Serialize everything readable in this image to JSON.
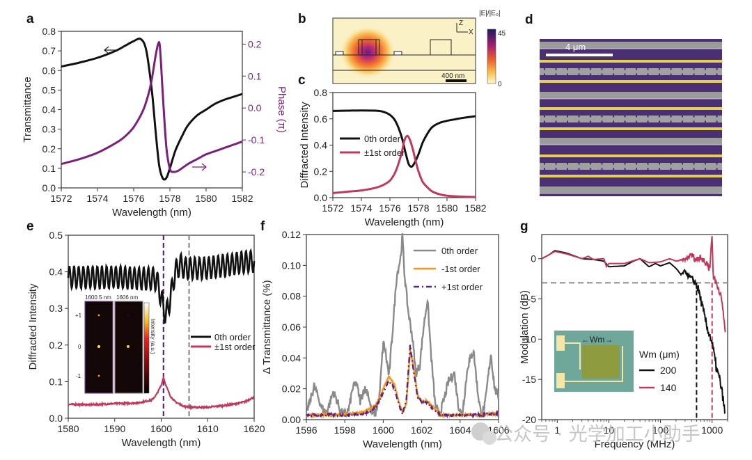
{
  "panels": {
    "a": {
      "letter": "a"
    },
    "b": {
      "letter": "b",
      "axis_z": "Z",
      "axis_x": "X",
      "scalebar_label": "400 nm",
      "colorbar_title": "|E|/|E₀|",
      "colorbar_max": "45",
      "colorbar_min": "0"
    },
    "c": {
      "letter": "c"
    },
    "d": {
      "letter": "d",
      "scalebar_label": "4 μm"
    },
    "e": {
      "letter": "e",
      "inset": {
        "label_left": "1600.5 nm",
        "label_right": "1606 nm",
        "order_plus": "+1",
        "order_zero": "0",
        "order_minus": "-1",
        "colorbar_label": "Intensity (a.u.)"
      }
    },
    "f": {
      "letter": "f"
    },
    "g": {
      "letter": "g",
      "inset_label": "←Wm→",
      "legend_title": "Wm (μm)"
    }
  },
  "watermark": "公众号 · 光学加工小助手",
  "colors": {
    "black": "#111111",
    "purple": "#7b1f7a",
    "crimson": "#c0395a",
    "gray": "#8a8a8a",
    "orange": "#f7941d",
    "dark_purple": "#5b2483"
  },
  "chart_data": [
    {
      "id": "a",
      "type": "line",
      "xlabel": "Wavelength (nm)",
      "ylabel": "Transmittance",
      "y2label": "Phase (π)",
      "xlim": [
        1572,
        1582
      ],
      "ylim": [
        0,
        0.8
      ],
      "y2lim": [
        -0.25,
        0.24
      ],
      "xticks": [
        "1572",
        "1574",
        "1576",
        "1578",
        "1580",
        "1582"
      ],
      "yticks": [
        "0.0",
        "0.1",
        "0.2",
        "0.3",
        "0.4",
        "0.5",
        "0.6",
        "0.7",
        "0.8"
      ],
      "y2ticks": [
        "-0.2",
        "-0.1",
        "0.0",
        "0.1",
        "0.2"
      ],
      "series": [
        {
          "name": "Transmittance",
          "axis": "left",
          "color": "#111111",
          "x": [
            1572,
            1573,
            1574,
            1575,
            1575.5,
            1576,
            1576.4,
            1576.7,
            1577,
            1577.2,
            1577.4,
            1577.6,
            1577.8,
            1578,
            1578.3,
            1578.7,
            1579,
            1579.5,
            1580,
            1580.5,
            1581,
            1581.5,
            1582
          ],
          "y": [
            0.62,
            0.64,
            0.665,
            0.7,
            0.725,
            0.75,
            0.76,
            0.7,
            0.5,
            0.3,
            0.12,
            0.05,
            0.05,
            0.1,
            0.19,
            0.27,
            0.32,
            0.37,
            0.4,
            0.43,
            0.45,
            0.465,
            0.48
          ]
        },
        {
          "name": "Phase",
          "axis": "right",
          "color": "#7b1f7a",
          "x": [
            1572,
            1573,
            1574,
            1575,
            1575.5,
            1576,
            1576.5,
            1576.8,
            1577,
            1577.2,
            1577.35,
            1577.45,
            1577.6,
            1577.8,
            1578,
            1578.2,
            1578.5,
            1579,
            1579.5,
            1580,
            1580.5,
            1581,
            1581.5,
            1582
          ],
          "y": [
            -0.175,
            -0.16,
            -0.14,
            -0.11,
            -0.09,
            -0.06,
            -0.01,
            0.04,
            0.09,
            0.16,
            0.2,
            0.19,
            0.05,
            -0.12,
            -0.19,
            -0.2,
            -0.195,
            -0.175,
            -0.16,
            -0.145,
            -0.135,
            -0.125,
            -0.115,
            -0.105
          ]
        }
      ],
      "annotations": [
        "arrow-left near black curve",
        "arrow-right near purple curve"
      ]
    },
    {
      "id": "c",
      "type": "line",
      "xlabel": "Wavelength (nm)",
      "ylabel": "Diffracted Intensity",
      "xlim": [
        1572,
        1582
      ],
      "ylim": [
        0,
        0.8
      ],
      "xticks": [
        "1572",
        "1574",
        "1576",
        "1578",
        "1580",
        "1582"
      ],
      "yticks": [
        "0.0",
        "0.2",
        "0.4",
        "0.6",
        "0.8"
      ],
      "legend": [
        "0th order",
        "±1st order"
      ],
      "legend_position": "center-left",
      "series": [
        {
          "name": "0th order",
          "color": "#111111",
          "x": [
            1572,
            1573,
            1574,
            1575,
            1575.5,
            1576,
            1576.4,
            1576.8,
            1577.1,
            1577.3,
            1577.5,
            1577.7,
            1578,
            1578.3,
            1578.7,
            1579,
            1579.5,
            1580,
            1580.5,
            1581,
            1582
          ],
          "y": [
            0.66,
            0.662,
            0.664,
            0.662,
            0.655,
            0.63,
            0.58,
            0.47,
            0.34,
            0.26,
            0.235,
            0.26,
            0.33,
            0.42,
            0.5,
            0.54,
            0.57,
            0.585,
            0.595,
            0.605,
            0.62
          ]
        },
        {
          "name": "±1st order",
          "color": "#c0395a",
          "x": [
            1572,
            1573,
            1574,
            1575,
            1575.5,
            1576,
            1576.4,
            1576.8,
            1577,
            1577.2,
            1577.4,
            1577.6,
            1577.8,
            1578,
            1578.3,
            1578.7,
            1579,
            1579.5,
            1580,
            1581,
            1582
          ],
          "y": [
            0.035,
            0.045,
            0.055,
            0.075,
            0.095,
            0.13,
            0.2,
            0.33,
            0.43,
            0.47,
            0.44,
            0.37,
            0.28,
            0.2,
            0.12,
            0.07,
            0.045,
            0.025,
            0.015,
            0.008,
            0.005
          ]
        }
      ]
    },
    {
      "id": "e",
      "type": "line",
      "xlabel": "Wavelength (nm)",
      "ylabel": "Diffracted Intensity",
      "xlim": [
        1580,
        1620
      ],
      "ylim": [
        0,
        0.5
      ],
      "xticks": [
        "1580",
        "1590",
        "1600",
        "1610",
        "1620"
      ],
      "yticks": [
        "0.0",
        "0.1",
        "0.2",
        "0.3",
        "0.4",
        "0.5"
      ],
      "legend": [
        "0th order",
        "±1st order"
      ],
      "legend_position": "center-right",
      "vlines": [
        {
          "x": 1600.5,
          "color": "#5b2483",
          "style": "dashed"
        },
        {
          "x": 1606,
          "color": "#8a8a8a",
          "style": "dashed"
        }
      ],
      "series": [
        {
          "name": "0th order",
          "color": "#111111",
          "baseline": 0.385,
          "ripple_amplitude": 0.03,
          "ripple_period_nm": 1.0,
          "dip": {
            "center": 1601,
            "depth": 0.1,
            "width": 1.5
          },
          "x": [
            1580,
            1590,
            1599,
            1600,
            1600.5,
            1601,
            1602,
            1603,
            1604,
            1605,
            1610,
            1615,
            1620
          ],
          "y": [
            0.385,
            0.385,
            0.38,
            0.33,
            0.3,
            0.28,
            0.33,
            0.4,
            0.42,
            0.41,
            0.41,
            0.42,
            0.43
          ]
        },
        {
          "name": "±1st order",
          "color": "#c0395a",
          "x": [
            1580,
            1585,
            1590,
            1595,
            1598,
            1599,
            1600,
            1600.5,
            1601,
            1602,
            1603,
            1605,
            1607,
            1610,
            1615,
            1618,
            1620
          ],
          "y": [
            0.038,
            0.037,
            0.04,
            0.042,
            0.05,
            0.065,
            0.09,
            0.112,
            0.09,
            0.06,
            0.045,
            0.032,
            0.03,
            0.03,
            0.037,
            0.045,
            0.058
          ]
        }
      ]
    },
    {
      "id": "f",
      "type": "line",
      "xlabel": "Wavelength (nm)",
      "ylabel": "Δ Transmittance (%)",
      "xlim": [
        1596,
        1606
      ],
      "ylim": [
        0,
        0.12
      ],
      "xticks": [
        "1596",
        "1598",
        "1600",
        "1602",
        "1604",
        "1606"
      ],
      "yticks": [
        "0.00",
        "0.02",
        "0.04",
        "0.06",
        "0.08",
        "0.10",
        "0.12"
      ],
      "legend": [
        "0th order",
        "-1st order",
        "+1st order"
      ],
      "legend_position": "top-right",
      "series": [
        {
          "name": "0th order",
          "color": "#8a8a8a",
          "x": [
            1596,
            1596.2,
            1596.4,
            1596.6,
            1596.8,
            1597,
            1597.2,
            1597.4,
            1597.6,
            1597.8,
            1598,
            1598.2,
            1598.4,
            1598.6,
            1598.8,
            1599,
            1599.2,
            1599.4,
            1599.6,
            1599.8,
            1600,
            1600.1,
            1600.3,
            1600.5,
            1600.7,
            1600.9,
            1601,
            1601.1,
            1601.3,
            1601.5,
            1601.7,
            1601.9,
            1602.1,
            1602.3,
            1602.5,
            1602.7,
            1602.9,
            1603.1,
            1603.4,
            1603.7,
            1603.9,
            1604.1,
            1604.4,
            1604.7,
            1604.9,
            1605.1,
            1605.3,
            1605.6,
            1605.8,
            1606
          ],
          "y": [
            0.005,
            0.012,
            0.022,
            0.015,
            0.008,
            0.004,
            0.01,
            0.018,
            0.012,
            0.005,
            0.003,
            0.006,
            0.02,
            0.024,
            0.012,
            0.02,
            0.018,
            0.004,
            0.004,
            0.015,
            0.05,
            0.045,
            0.028,
            0.06,
            0.093,
            0.105,
            0.119,
            0.095,
            0.07,
            0.055,
            0.03,
            0.035,
            0.06,
            0.078,
            0.04,
            0.01,
            0.003,
            0.01,
            0.025,
            0.03,
            0.01,
            0.002,
            0.035,
            0.045,
            0.02,
            0.002,
            0.01,
            0.043,
            0.02,
            0.015
          ]
        },
        {
          "name": "-1st order",
          "color": "#f7941d",
          "x": [
            1596,
            1597,
            1598,
            1599,
            1599.5,
            1599.8,
            1600,
            1600.3,
            1600.6,
            1600.8,
            1601,
            1601.2,
            1601.4,
            1601.6,
            1601.8,
            1602,
            1602.3,
            1602.6,
            1603,
            1604,
            1605,
            1606
          ],
          "y": [
            0.003,
            0.003,
            0.003,
            0.005,
            0.008,
            0.013,
            0.02,
            0.028,
            0.022,
            0.012,
            0.005,
            0.01,
            0.045,
            0.032,
            0.015,
            0.012,
            0.012,
            0.008,
            0.003,
            0.003,
            0.003,
            0.004
          ]
        },
        {
          "name": "+1st order",
          "color": "#5b2483",
          "style": "dashdot",
          "x": [
            1596,
            1597,
            1598,
            1599,
            1599.5,
            1599.8,
            1600,
            1600.3,
            1600.6,
            1600.8,
            1601,
            1601.2,
            1601.4,
            1601.6,
            1601.8,
            1602,
            1602.3,
            1602.6,
            1603,
            1604,
            1605,
            1606
          ],
          "y": [
            0.003,
            0.003,
            0.003,
            0.004,
            0.007,
            0.012,
            0.018,
            0.025,
            0.02,
            0.01,
            0.004,
            0.012,
            0.048,
            0.03,
            0.014,
            0.012,
            0.011,
            0.007,
            0.003,
            0.003,
            0.003,
            0.004
          ]
        }
      ]
    },
    {
      "id": "g",
      "type": "line",
      "xlabel": "Frequency (MHz)",
      "ylabel": "Modulation (dB)",
      "xscale": "log",
      "xlim": [
        0.5,
        2000
      ],
      "ylim": [
        -20,
        3
      ],
      "xticks": [
        "1",
        "10",
        "100",
        "1000"
      ],
      "yticks": [
        "-20",
        "-15",
        "-10",
        "-5",
        "0"
      ],
      "legend_title": "Wm (μm)",
      "legend": [
        "200",
        "140"
      ],
      "legend_position": "bottom-center",
      "hlines": [
        {
          "y": -3,
          "color": "#8a8a8a",
          "style": "dashed"
        }
      ],
      "vlines": [
        {
          "x": 500,
          "color": "#111111",
          "style": "dashed",
          "y_top": -3
        },
        {
          "x": 1000,
          "color": "#c0395a",
          "style": "dashed",
          "y_top": -3
        }
      ],
      "series": [
        {
          "name": "200",
          "color": "#111111",
          "x": [
            0.5,
            0.7,
            0.9,
            1.5,
            3,
            5,
            8,
            10,
            20,
            30,
            40,
            60,
            80,
            100,
            150,
            200,
            250,
            300,
            350,
            400,
            450,
            500,
            550,
            600,
            700,
            800,
            900,
            1000,
            1100,
            1200,
            1400,
            1600,
            1800
          ],
          "y": [
            0,
            0.5,
            1,
            0.7,
            0,
            -0.1,
            -0.3,
            -1.0,
            -0.9,
            -0.3,
            0,
            -1.0,
            -0.6,
            -0.9,
            -0.5,
            -1.2,
            -2.0,
            -1.5,
            -2.2,
            -2.5,
            -2.8,
            -3.3,
            -4.0,
            -5.0,
            -7.0,
            -8.5,
            -9.5,
            -10.5,
            -12.0,
            -13.5,
            -15.0,
            -17.0,
            -19.5
          ]
        },
        {
          "name": "140",
          "color": "#c0395a",
          "x": [
            0.5,
            0.7,
            0.9,
            1.5,
            3,
            4,
            5,
            8,
            9,
            10,
            20,
            40,
            60,
            100,
            150,
            200,
            300,
            400,
            500,
            600,
            700,
            800,
            900,
            1000,
            1050,
            1100,
            1200,
            1400,
            1600,
            1800
          ],
          "y": [
            0,
            0.5,
            0.9,
            0.6,
            0,
            0.3,
            -0.1,
            0,
            -1.0,
            -0.6,
            -0.6,
            0,
            -0.5,
            -0.4,
            0,
            -0.3,
            -0.1,
            0.5,
            -0.2,
            0.4,
            -0.5,
            -0.6,
            -1.2,
            3.0,
            -2.0,
            -2.5,
            -3.0,
            -4.0,
            -6.0,
            -9.0
          ]
        }
      ]
    }
  ]
}
